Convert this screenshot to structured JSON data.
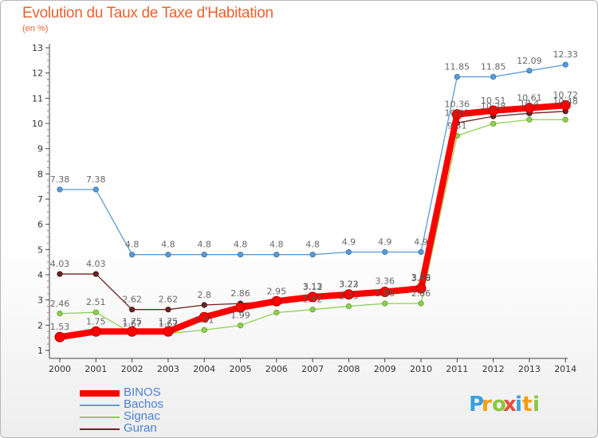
{
  "chart_data": {
    "type": "line",
    "title": "Evolution du Taux de Taxe d'Habitation",
    "subtitle": "(en %)",
    "x": [
      "2000",
      "2001",
      "2002",
      "2003",
      "2004",
      "2005",
      "2006",
      "2007",
      "2008",
      "2009",
      "2010",
      "2011",
      "2012",
      "2013",
      "2014"
    ],
    "ylim": [
      1,
      13
    ],
    "yticks": [
      1,
      2,
      3,
      4,
      5,
      6,
      7,
      8,
      9,
      10,
      11,
      12,
      13
    ],
    "grid": false,
    "legend_position": "bottom-left",
    "series": [
      {
        "name": "BINOS",
        "color": "#ff0000",
        "emphasis": true,
        "values": [
          1.53,
          1.75,
          1.75,
          1.75,
          2.32,
          2.7,
          2.95,
          3.12,
          3.22,
          3.32,
          3.46,
          10.36,
          10.51,
          10.61,
          10.72
        ],
        "labels": [
          "1.53",
          "1.75",
          "1.75",
          "1.75",
          "",
          "",
          "2.95",
          "3.12",
          "3.22",
          "",
          "3.46",
          "10.36",
          "10.51",
          "10.61",
          "10.72"
        ]
      },
      {
        "name": "Bachos",
        "color": "#5b9bd5",
        "values": [
          7.38,
          7.38,
          4.8,
          4.8,
          4.8,
          4.8,
          4.8,
          4.8,
          4.9,
          4.9,
          4.9,
          11.85,
          11.85,
          12.09,
          12.33
        ],
        "labels": [
          "7.38",
          "7.38",
          "4.8",
          "4.8",
          "4.8",
          "4.8",
          "4.8",
          "4.8",
          "4.9",
          "4.9",
          "4.9",
          "11.85",
          "11.85",
          "12.09",
          "12.33"
        ]
      },
      {
        "name": "Signac",
        "color": "#8fd14f",
        "values": [
          2.46,
          2.51,
          1.67,
          1.67,
          1.81,
          1.99,
          2.5,
          2.62,
          2.75,
          2.86,
          2.86,
          9.51,
          9.99,
          10.15,
          10.15
        ],
        "labels": [
          "2.46",
          "2.51",
          "1.67",
          "1.67",
          "1.81",
          "1.99",
          "",
          "2.62",
          "2.75",
          "2.86",
          "2.86",
          "9.51",
          "",
          "",
          ""
        ]
      },
      {
        "name": "Guran",
        "color": "#6e2323",
        "values": [
          4.03,
          4.03,
          2.62,
          2.62,
          2.8,
          2.86,
          2.95,
          3.13,
          3.23,
          3.36,
          3.49,
          10.02,
          10.28,
          10.4,
          10.48
        ],
        "labels": [
          "4.03",
          "4.03",
          "2.62",
          "2.62",
          "2.8",
          "2.86",
          "",
          "3.13",
          "3.23",
          "3.36",
          "3.49",
          "10.02",
          "10.28",
          "10.4",
          "10.48"
        ]
      }
    ]
  },
  "legend": [
    {
      "name": "BINOS",
      "color": "#ff0000"
    },
    {
      "name": "Bachos",
      "color": "#5b9bd5"
    },
    {
      "name": "Signac",
      "color": "#8fd14f"
    },
    {
      "name": "Guran",
      "color": "#6e2323"
    }
  ],
  "brand": {
    "letters": [
      "P",
      "r",
      "o",
      "x",
      "i",
      "t",
      "i"
    ],
    "colors": [
      "#3aa0e0",
      "#f39c12",
      "#8cc63f",
      "#e74c3c",
      "#3aa0e0",
      "#f39c12",
      "#8cc63f"
    ]
  }
}
